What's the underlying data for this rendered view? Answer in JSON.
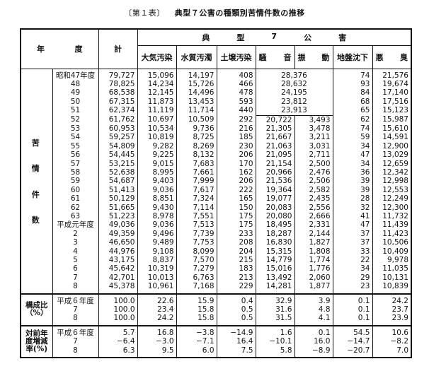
{
  "title": {
    "label": "〔第１表〕",
    "text": "典型７公害の種類別苦情件数の推移"
  },
  "header": {
    "year": [
      "年",
      "度"
    ],
    "total": "計",
    "group": [
      "典",
      "型",
      "7",
      "公",
      "害"
    ],
    "columns": {
      "air": "大気汚染",
      "water": "水質汚濁",
      "soil": "土壌汚染",
      "noise": [
        "騒",
        "音"
      ],
      "vibration": [
        "振",
        "動"
      ],
      "subsidence": "地盤沈下",
      "odor": [
        "悪",
        "臭"
      ]
    }
  },
  "complaints": {
    "label": [
      "苦",
      "情",
      "件",
      "数"
    ],
    "rows": [
      {
        "year": "昭和47年度",
        "total": "79,727",
        "air": "15,096",
        "water": "14,197",
        "soil": "408",
        "noise_vibration": "28,376",
        "subsidence": "74",
        "odor": "21,576"
      },
      {
        "year": "48",
        "total": "78,825",
        "air": "14,234",
        "water": "15,726",
        "soil": "466",
        "noise_vibration": "28,632",
        "subsidence": "93",
        "odor": "19,674"
      },
      {
        "year": "49",
        "total": "68,538",
        "air": "12,145",
        "water": "14,496",
        "soil": "478",
        "noise_vibration": "24,195",
        "subsidence": "84",
        "odor": "17,140"
      },
      {
        "year": "50",
        "total": "67,315",
        "air": "11,873",
        "water": "13,453",
        "soil": "593",
        "noise_vibration": "23,812",
        "subsidence": "68",
        "odor": "17,516"
      },
      {
        "year": "51",
        "total": "62,374",
        "air": "11,119",
        "water": "11,714",
        "soil": "440",
        "noise_vibration": "23,913",
        "subsidence": "65",
        "odor": "15,123"
      },
      {
        "year": "52",
        "total": "61,762",
        "air": "10,697",
        "water": "10,509",
        "soil": "292",
        "noise": "20,722",
        "vibration": "3,493",
        "subsidence": "62",
        "odor": "15,987"
      },
      {
        "year": "53",
        "total": "60,953",
        "air": "10,534",
        "water": "9,736",
        "soil": "216",
        "noise": "21,305",
        "vibration": "3,478",
        "subsidence": "74",
        "odor": "15,610"
      },
      {
        "year": "54",
        "total": "59,257",
        "air": "10,819",
        "water": "8,725",
        "soil": "185",
        "noise": "21,667",
        "vibration": "3,211",
        "subsidence": "59",
        "odor": "14,591"
      },
      {
        "year": "55",
        "total": "54,809",
        "air": "9,282",
        "water": "8,269",
        "soil": "230",
        "noise": "21,063",
        "vibration": "3,031",
        "subsidence": "34",
        "odor": "12,900"
      },
      {
        "year": "56",
        "total": "54,445",
        "air": "9,225",
        "water": "8,132",
        "soil": "206",
        "noise": "21,095",
        "vibration": "2,711",
        "subsidence": "47",
        "odor": "13,029"
      },
      {
        "year": "57",
        "total": "53,215",
        "air": "9,015",
        "water": "7,683",
        "soil": "170",
        "noise": "21,154",
        "vibration": "2,500",
        "subsidence": "34",
        "odor": "12,659"
      },
      {
        "year": "58",
        "total": "52,638",
        "air": "8,995",
        "water": "7,661",
        "soil": "162",
        "noise": "20,966",
        "vibration": "2,476",
        "subsidence": "36",
        "odor": "12,342"
      },
      {
        "year": "59",
        "total": "54,687",
        "air": "9,403",
        "water": "7,999",
        "soil": "206",
        "noise": "21,536",
        "vibration": "2,506",
        "subsidence": "39",
        "odor": "12,998"
      },
      {
        "year": "60",
        "total": "51,413",
        "air": "9,036",
        "water": "7,617",
        "soil": "222",
        "noise": "19,364",
        "vibration": "2,582",
        "subsidence": "39",
        "odor": "12,553"
      },
      {
        "year": "61",
        "total": "50,129",
        "air": "8,851",
        "water": "7,324",
        "soil": "165",
        "noise": "19,077",
        "vibration": "2,435",
        "subsidence": "28",
        "odor": "12,249"
      },
      {
        "year": "62",
        "total": "51,665",
        "air": "9,430",
        "water": "7,114",
        "soil": "150",
        "noise": "20,083",
        "vibration": "2,556",
        "subsidence": "32",
        "odor": "12,300"
      },
      {
        "year": "63",
        "total": "51,223",
        "air": "8,978",
        "water": "7,551",
        "soil": "175",
        "noise": "20,080",
        "vibration": "2,666",
        "subsidence": "41",
        "odor": "11,732"
      },
      {
        "year": "平成元年度",
        "total": "49,036",
        "air": "9,036",
        "water": "7,513",
        "soil": "175",
        "noise": "18,495",
        "vibration": "2,331",
        "subsidence": "47",
        "odor": "11,439"
      },
      {
        "year": "2",
        "total": "49,359",
        "air": "9,496",
        "water": "7,739",
        "soil": "233",
        "noise": "18,287",
        "vibration": "2,144",
        "subsidence": "37",
        "odor": "11,423"
      },
      {
        "year": "3",
        "total": "46,650",
        "air": "9,489",
        "water": "7,753",
        "soil": "208",
        "noise": "16,830",
        "vibration": "1,827",
        "subsidence": "37",
        "odor": "10,506"
      },
      {
        "year": "4",
        "total": "44,976",
        "air": "9,108",
        "water": "8,099",
        "soil": "204",
        "noise": "15,315",
        "vibration": "1,808",
        "subsidence": "33",
        "odor": "10,409"
      },
      {
        "year": "5",
        "total": "43,175",
        "air": "8,837",
        "water": "7,570",
        "soil": "215",
        "noise": "14,779",
        "vibration": "1,774",
        "subsidence": "22",
        "odor": "9,978"
      },
      {
        "year": "6",
        "total": "45,642",
        "air": "10,319",
        "water": "7,279",
        "soil": "183",
        "noise": "15,016",
        "vibration": "1,776",
        "subsidence": "34",
        "odor": "11,035"
      },
      {
        "year": "7",
        "total": "42,701",
        "air": "10,013",
        "water": "6,763",
        "soil": "213",
        "noise": "13,492",
        "vibration": "2,060",
        "subsidence": "29",
        "odor": "10,131"
      },
      {
        "year": "8",
        "total": "45,378",
        "air": "10,961",
        "water": "7,168",
        "soil": "229",
        "noise": "14,281",
        "vibration": "1,877",
        "subsidence": "23",
        "odor": "10,839"
      }
    ]
  },
  "sections": [
    {
      "label": [
        "構成比",
        "（%）"
      ],
      "years": [
        "平成６年度",
        "7",
        "8"
      ],
      "total": [
        "100.0",
        "100.0",
        "100.0"
      ],
      "air": [
        "22.6",
        "23.4",
        "24.2"
      ],
      "water": [
        "15.9",
        "15.8",
        "15.8"
      ],
      "soil": [
        "0.4",
        "0.5",
        "0.5"
      ],
      "noise": [
        "32.9",
        "31.6",
        "31.5"
      ],
      "vibration": [
        "3.9",
        "4.8",
        "4.1"
      ],
      "subsidence": [
        "0.1",
        "0.1",
        "0.1"
      ],
      "odor": [
        "24.2",
        "23.7",
        "23.9"
      ]
    },
    {
      "label": [
        "対前年",
        "度増減",
        "率(%)"
      ],
      "years": [
        "平成６年度",
        "7",
        "8"
      ],
      "total": [
        "5.7",
        "−6.4",
        "6.3"
      ],
      "air": [
        "16.8",
        "−3.0",
        "9.5"
      ],
      "water": [
        "−3.8",
        "−7.1",
        "6.0"
      ],
      "soil": [
        "−14.9",
        "16.4",
        "7.5"
      ],
      "noise": [
        "1.6",
        "−10.1",
        "5.8"
      ],
      "vibration": [
        "0.1",
        "16.0",
        "−8.9"
      ],
      "subsidence": [
        "54.5",
        "−14.7",
        "−20.7"
      ],
      "odor": [
        "10.6",
        "−8.2",
        "7.0"
      ]
    }
  ]
}
